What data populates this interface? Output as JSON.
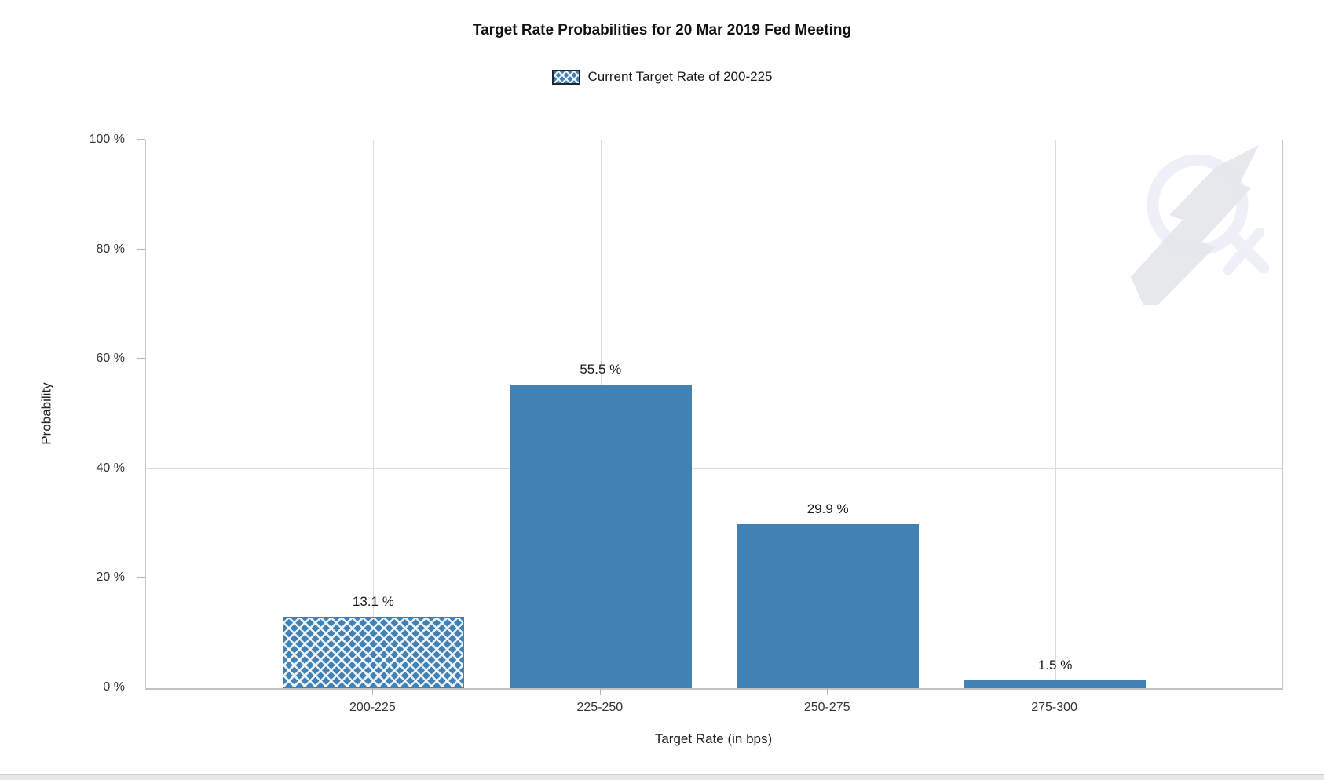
{
  "header": {
    "title": "Target Rate Probabilities for 20 Mar 2019 Fed Meeting"
  },
  "legend": {
    "items": [
      {
        "label": "Current Target Rate of 200-225",
        "swatch": "crosshatch-blue"
      }
    ]
  },
  "chart_data": {
    "type": "bar",
    "title": "Target Rate Probabilities for 20 Mar 2019 Fed Meeting",
    "categories": [
      "200-225",
      "225-250",
      "250-275",
      "275-300"
    ],
    "values": [
      13.1,
      55.5,
      29.9,
      1.5
    ],
    "value_labels": [
      "13.1 %",
      "55.5 %",
      "29.9 %",
      "1.5 %"
    ],
    "highlighted_category": "200-225",
    "highlight_style": "crosshatch",
    "xlabel": "Target Rate (in bps)",
    "ylabel": "Probability",
    "ylim": [
      0,
      100
    ],
    "yticks": [
      0,
      20,
      40,
      60,
      80,
      100
    ],
    "ytick_labels": [
      "0 %",
      "20 %",
      "40 %",
      "60 %",
      "80 %",
      "100 %"
    ],
    "grid": true,
    "legend_position": "top",
    "bar_color": "#4281B4"
  },
  "colors": {
    "bar": "#4281B4",
    "grid": "#DCDCDC",
    "axis": "#C2C2C2",
    "tick_text": "#333333",
    "title_text": "#111111",
    "watermark_ring": "#EDF1F7",
    "watermark_bolt": "#E3E6EA",
    "bottom_strip": "#E7E7E7"
  },
  "icons": {
    "watermark": "quandl-q-lightning-logo",
    "legend_swatch": "crosshatch-pattern-swatch"
  }
}
